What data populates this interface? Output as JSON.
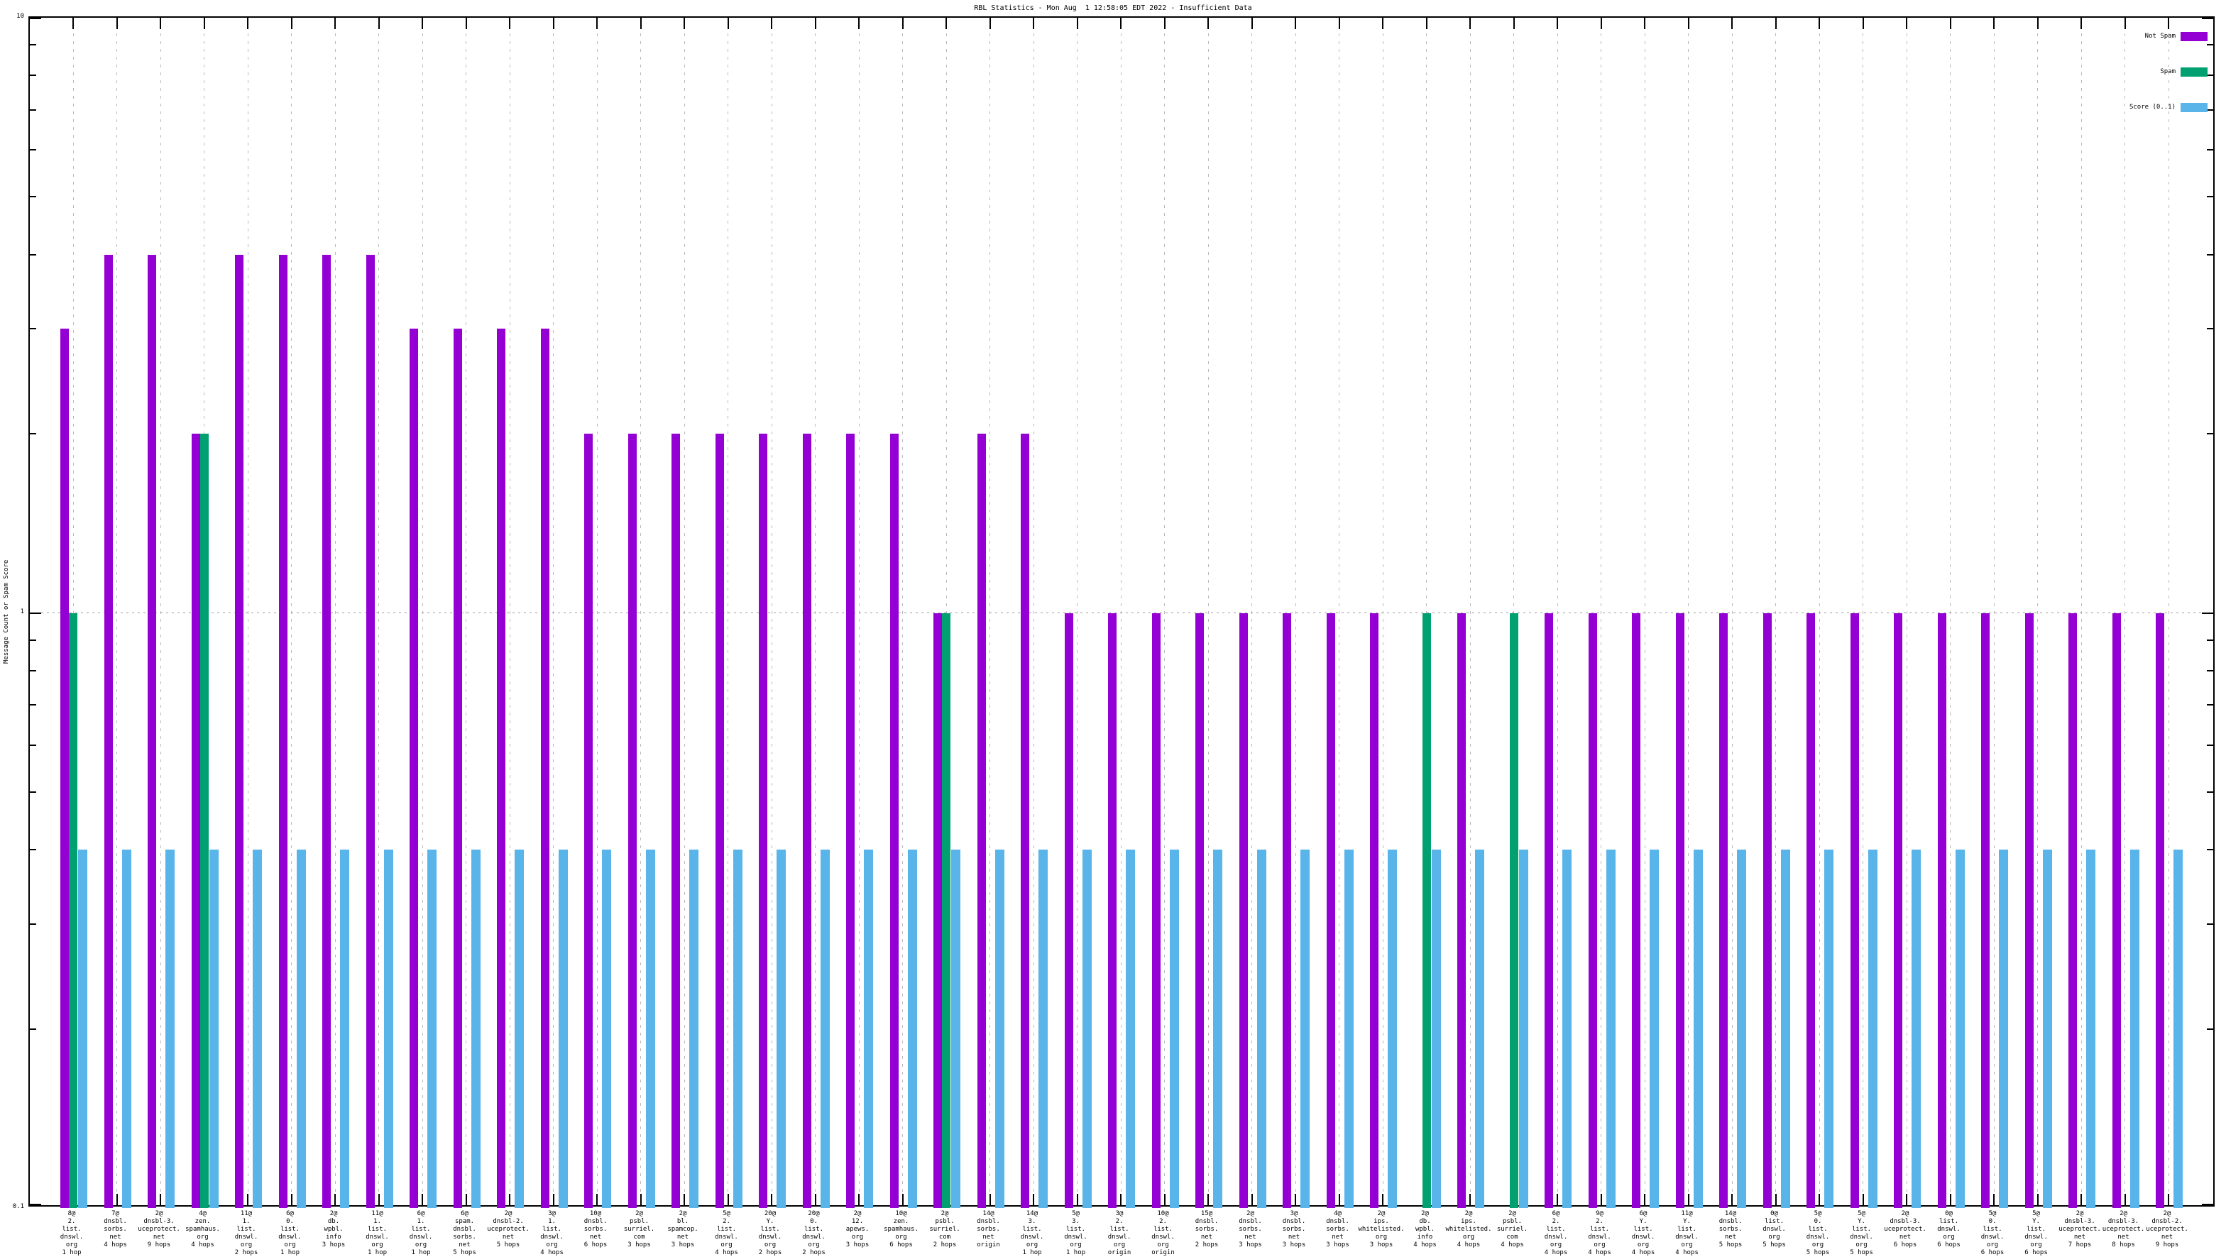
{
  "title": "RBL Statistics - Mon Aug  1 12:58:05 EDT 2022 - Insufficient Data",
  "y_axis": {
    "label": "Message Count or Spam Score",
    "tick_labels": [
      "10",
      "1",
      "0.1"
    ]
  },
  "legend": {
    "position": "top-right",
    "items": [
      {
        "label": "Not Spam",
        "color": "#9400d3"
      },
      {
        "label": "Spam",
        "color": "#00a070"
      },
      {
        "label": "Score (0..1)",
        "color": "#58b4e9"
      }
    ]
  },
  "colors": {
    "not_spam": "#9400d3",
    "spam": "#00a070",
    "score": "#58b4e9",
    "grid": "#b9b9b9",
    "axis": "#000000"
  },
  "chart_data": {
    "type": "bar",
    "title": "RBL Statistics - Mon Aug  1 12:58:05 EDT 2022 - Insufficient Data",
    "ylabel": "Message Count or Spam Score",
    "xlabel": "",
    "yscale": "log",
    "ylim": [
      0.1,
      10
    ],
    "ytick_major": [
      10,
      1,
      0.1
    ],
    "grid": "vertical dashed gridlines at each category; dotted horizontal line at y=1",
    "legend_position": "top-right",
    "categories": [
      "8@\n2.\nlist.\ndnswl.\norg\n1 hop",
      "7@\ndnsbl.\nsorbs.\nnet\n4 hops",
      "2@\ndnsbl-3.\nuceprotect.\nnet\n9 hops",
      "4@\nzen.\nspamhaus.\norg\n4 hops",
      "11@\n1.\nlist.\ndnswl.\norg\n2 hops",
      "6@\n0.\nlist.\ndnswl.\norg\n1 hop",
      "2@\ndb.\nwpbl.\ninfo\n3 hops",
      "11@\n1.\nlist.\ndnswl.\norg\n1 hop",
      "6@\n1.\nlist.\ndnswl.\norg\n1 hop",
      "6@\nspam.\ndnsbl.\nsorbs.\nnet\n5 hops",
      "2@\ndnsbl-2.\nuceprotect.\nnet\n5 hops",
      "3@\n1.\nlist.\ndnswl.\norg\n4 hops",
      "10@\ndnsbl.\nsorbs.\nnet\n6 hops",
      "2@\npsbl.\nsurriel.\ncom\n3 hops",
      "2@\nbl.\nspamcop.\nnet\n3 hops",
      "5@\n2.\nlist.\ndnswl.\norg\n4 hops",
      "20@\nY.\nlist.\ndnswl.\norg\n2 hops",
      "20@\n0.\nlist.\ndnswl.\norg\n2 hops",
      "2@\n12.\napews.\norg\n3 hops",
      "10@\nzen.\nspamhaus.\norg\n6 hops",
      "2@\npsbl.\nsurriel.\ncom\n2 hops",
      "14@\ndnsbl.\nsorbs.\nnet\norigin",
      "14@\n3.\nlist.\ndnswl.\norg\n1 hop",
      "5@\n3.\nlist.\ndnswl.\norg\n1 hop",
      "3@\n2.\nlist.\ndnswl.\norg\norigin",
      "10@\n2.\nlist.\ndnswl.\norg\norigin",
      "15@\ndnsbl.\nsorbs.\nnet\n2 hops",
      "2@\ndnsbl.\nsorbs.\nnet\n3 hops",
      "3@\ndnsbl.\nsorbs.\nnet\n3 hops",
      "4@\ndnsbl.\nsorbs.\nnet\n3 hops",
      "2@\nips.\nwhitelisted.\norg\n3 hops",
      "2@\ndb.\nwpbl.\ninfo\n4 hops",
      "2@\nips.\nwhitelisted.\norg\n4 hops",
      "2@\npsbl.\nsurriel.\ncom\n4 hops",
      "6@\n2.\nlist.\ndnswl.\norg\n4 hops",
      "9@\n2.\nlist.\ndnswl.\norg\n4 hops",
      "6@\nY.\nlist.\ndnswl.\norg\n4 hops",
      "11@\nY.\nlist.\ndnswl.\norg\n4 hops",
      "14@\ndnsbl.\nsorbs.\nnet\n5 hops",
      "0@\nlist.\ndnswl.\norg\n5 hops",
      "5@\n0.\nlist.\ndnswl.\norg\n5 hops",
      "5@\nY.\nlist.\ndnswl.\norg\n5 hops",
      "2@\ndnsbl-3.\nuceprotect.\nnet\n6 hops",
      "0@\nlist.\ndnswl.\norg\n6 hops",
      "5@\n0.\nlist.\ndnswl.\norg\n6 hops",
      "5@\nY.\nlist.\ndnswl.\norg\n6 hops",
      "2@\ndnsbl-3.\nuceprotect.\nnet\n7 hops",
      "2@\ndnsbl-3.\nuceprotect.\nnet\n8 hops",
      "2@\ndnsbl-2.\nuceprotect.\nnet\n9 hops"
    ],
    "series": [
      {
        "name": "Not Spam",
        "color": "#9400d3",
        "values": [
          3,
          4,
          4,
          2,
          4,
          4,
          4,
          4,
          3,
          3,
          3,
          3,
          2,
          2,
          2,
          2,
          2,
          2,
          2,
          2,
          1,
          2,
          2,
          1,
          1,
          1,
          1,
          1,
          1,
          1,
          1,
          null,
          1,
          null,
          1,
          1,
          1,
          1,
          1,
          1,
          1,
          1,
          1,
          1,
          1,
          1,
          1,
          1,
          1
        ]
      },
      {
        "name": "Spam",
        "color": "#00a070",
        "values": [
          1,
          null,
          null,
          2,
          null,
          null,
          null,
          null,
          null,
          null,
          null,
          null,
          null,
          null,
          null,
          null,
          null,
          null,
          null,
          null,
          1,
          null,
          null,
          null,
          null,
          null,
          null,
          null,
          null,
          null,
          null,
          1,
          null,
          1,
          null,
          null,
          null,
          null,
          null,
          null,
          null,
          null,
          null,
          null,
          null,
          null,
          null,
          null,
          null
        ]
      },
      {
        "name": "Score (0..1)",
        "color": "#58b4e9",
        "values": [
          0.4,
          0.4,
          0.4,
          0.4,
          0.4,
          0.4,
          0.4,
          0.4,
          0.4,
          0.4,
          0.4,
          0.4,
          0.4,
          0.4,
          0.4,
          0.4,
          0.4,
          0.4,
          0.4,
          0.4,
          0.4,
          0.4,
          0.4,
          0.4,
          0.4,
          0.4,
          0.4,
          0.4,
          0.4,
          0.4,
          0.4,
          0.4,
          0.4,
          0.4,
          0.4,
          0.4,
          0.4,
          0.4,
          0.4,
          0.4,
          0.4,
          0.4,
          0.4,
          0.4,
          0.4,
          0.4,
          0.4,
          0.4,
          0.4
        ]
      }
    ]
  }
}
